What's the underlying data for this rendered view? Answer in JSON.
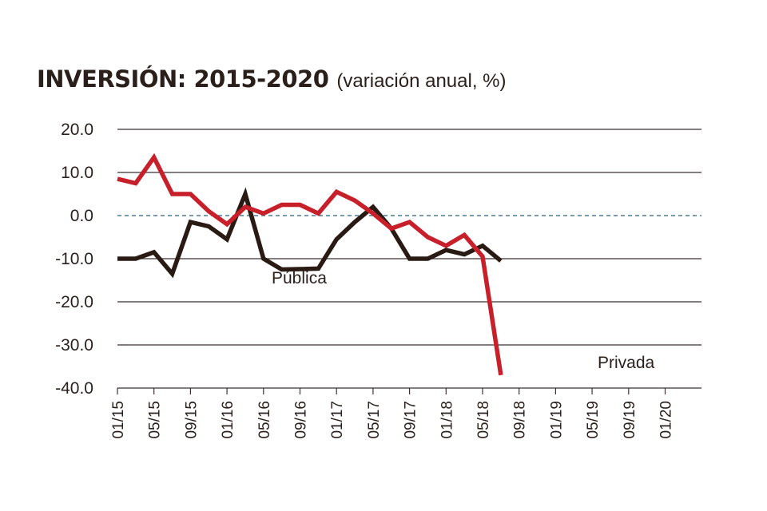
{
  "chart_data": {
    "type": "line",
    "title": "INVERSIÓN: 2015-2020",
    "subtitle": "(variación anual, %)",
    "xlabel": "",
    "ylabel": "",
    "ylim": [
      -40,
      20
    ],
    "y_ticks": [
      "20.0",
      "10.0",
      "0.0",
      "-10.0",
      "-20.0",
      "-30.0",
      "-40.0"
    ],
    "y_tick_values": [
      20,
      10,
      0,
      -10,
      -20,
      -30,
      -40
    ],
    "x_tick_labels": [
      "01/15",
      "05/15",
      "09/15",
      "01/16",
      "05/16",
      "09/16",
      "01/17",
      "05/17",
      "09/17",
      "01/18",
      "05/18",
      "09/18",
      "01/19",
      "05/19",
      "09/19",
      "01/20"
    ],
    "zero_line": "dashed",
    "grid": true,
    "series": [
      {
        "name": "Pública",
        "color": "#2a1a14",
        "values": [
          -10.0,
          -10.0,
          -8.5,
          -13.5,
          -1.5,
          -2.5,
          -5.5,
          5.0,
          -10.0,
          -12.5,
          -12.4,
          -12.3,
          -5.5,
          -1.5,
          2.0,
          -3.0,
          -10.0,
          -10.0,
          -8.0,
          -9.0,
          -7.0,
          -10.5
        ]
      },
      {
        "name": "Privada",
        "color": "#c8202a",
        "values": [
          8.5,
          7.5,
          13.5,
          5.0,
          5.0,
          1.0,
          -2.0,
          2.0,
          0.5,
          2.5,
          2.5,
          0.5,
          5.5,
          3.5,
          0.5,
          -3.0,
          -1.5,
          -5.0,
          -7.0,
          -4.5,
          -9.5,
          -37.0
        ]
      }
    ],
    "annotations": [
      {
        "text": "Pública",
        "series": "Pública"
      },
      {
        "text": "Privada",
        "series": "Privada"
      }
    ]
  }
}
